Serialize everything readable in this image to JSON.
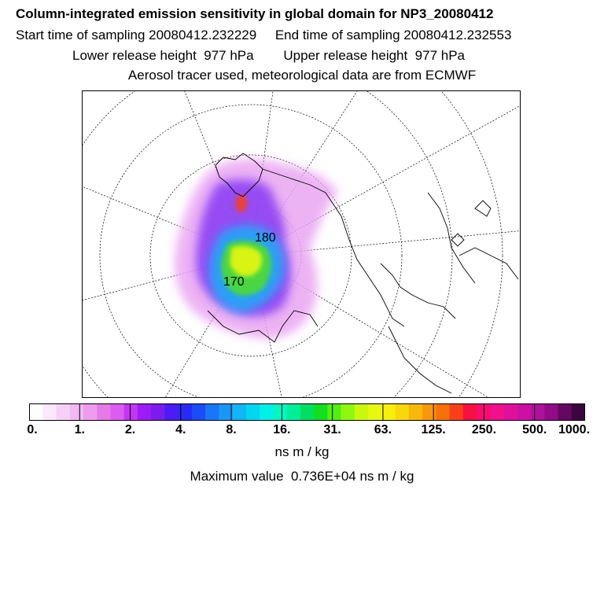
{
  "header": {
    "title": "Column-integrated emission sensitivity in global domain for NP3_20080412",
    "start_label": "Start time of sampling 20080412.232229",
    "end_label": "End time of sampling 20080412.232553",
    "lower_label": "Lower release height  977 hPa",
    "upper_label": "Upper release height  977 hPa",
    "tracer_label": "Aerosol tracer used, meteorological data are from ECMWF"
  },
  "chart_data": {
    "type": "heatmap",
    "projection": "polar stereographic",
    "title": "Column-integrated emission sensitivity in global domain for NP3_20080412",
    "colorbar": {
      "tick_labels": [
        "0.",
        "1.",
        "2.",
        "4.",
        "8.",
        "16.",
        "31.",
        "63.",
        "125.",
        "250.",
        "500.",
        "1000."
      ],
      "colors": [
        "#ffffff",
        "#fbe8fb",
        "#f7d0f7",
        "#f2b8f2",
        "#ee9cee",
        "#e67ae6",
        "#dc5cf0",
        "#c236f4",
        "#9c1cf8",
        "#7a1cf0",
        "#4c1cf4",
        "#2a2af8",
        "#1a4cf8",
        "#1a76f8",
        "#1a96f8",
        "#10b6f8",
        "#00d6f0",
        "#00f0e8",
        "#00f8c4",
        "#00f098",
        "#00e060",
        "#10e020",
        "#50f010",
        "#90f810",
        "#c8f810",
        "#e8f810",
        "#f8f008",
        "#f8d808",
        "#f8b808",
        "#f89808",
        "#f87008",
        "#f84018",
        "#f81040",
        "#f80c70",
        "#f0108c",
        "#e0109c",
        "#cc10a4",
        "#b0109c",
        "#900c88",
        "#640860",
        "#3c0440"
      ],
      "unit": "ns m / kg"
    },
    "max_value_label": "Maximum value  0.736E+04 ns m / kg",
    "annotations": [
      "170",
      "180"
    ]
  }
}
